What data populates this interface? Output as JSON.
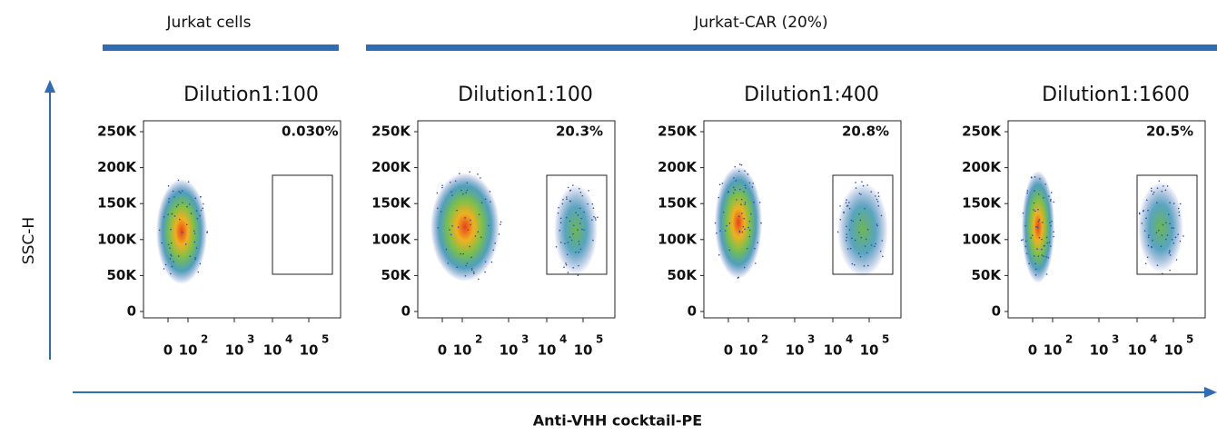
{
  "groups": [
    {
      "label": "Jurkat cells"
    },
    {
      "label": "Jurkat-CAR (20%)"
    }
  ],
  "y_axis_label": "SSC-H",
  "x_axis_label": "Anti-VHH cocktail-PE",
  "y_ticks": [
    "250K",
    "200K",
    "150K",
    "100K",
    "50K",
    "0"
  ],
  "x_ticks": [
    {
      "base": "0"
    },
    {
      "base": "10",
      "exp": "2"
    },
    {
      "base": "10",
      "exp": "3"
    },
    {
      "base": "10",
      "exp": "4"
    },
    {
      "base": "10",
      "exp": "5"
    }
  ],
  "panels": [
    {
      "title": "Dilution1:100",
      "gate": "0.030%"
    },
    {
      "title": "Dilution1:100",
      "gate": "20.3%"
    },
    {
      "title": "Dilution1:400",
      "gate": "20.8%"
    },
    {
      "title": "Dilution1:1600",
      "gate": "20.5%"
    }
  ]
}
